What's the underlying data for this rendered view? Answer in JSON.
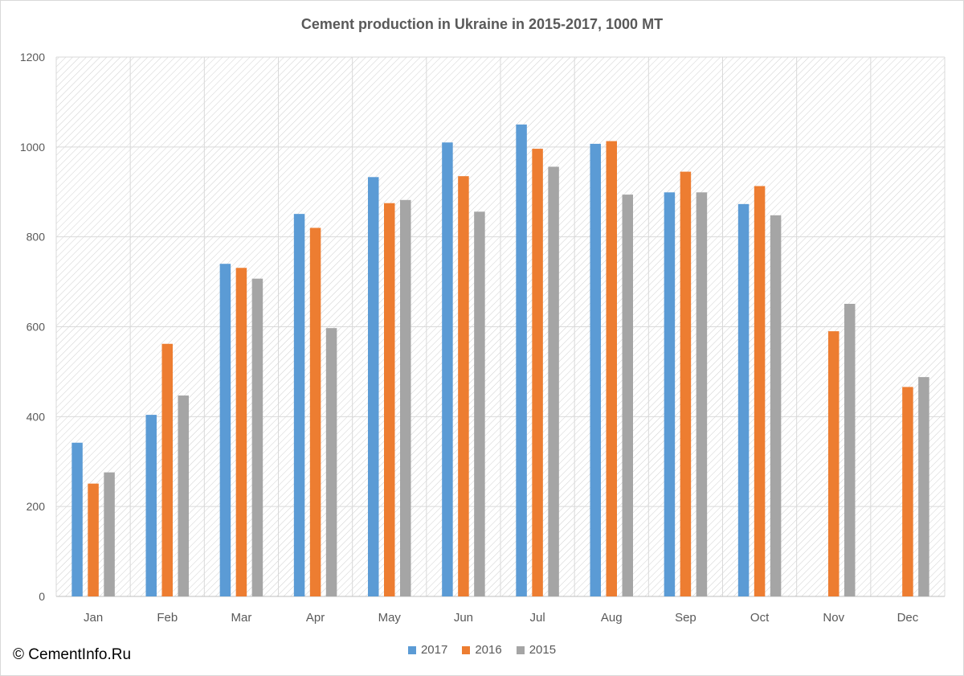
{
  "copyright": "© CementInfo.Ru",
  "chart_data": {
    "type": "bar",
    "title": "Cement production in Ukraine in 2015-2017, 1000 MT",
    "xlabel": "",
    "ylabel": "",
    "ylim": [
      0,
      1200
    ],
    "yticks": [
      0,
      200,
      400,
      600,
      800,
      1000,
      1200
    ],
    "grid": true,
    "legend_position": "bottom",
    "categories": [
      "Jan",
      "Feb",
      "Mar",
      "Apr",
      "May",
      "Jun",
      "Jul",
      "Aug",
      "Sep",
      "Oct",
      "Nov",
      "Dec"
    ],
    "series": [
      {
        "name": "2017",
        "color": "#5b9bd5",
        "values": [
          342,
          404,
          740,
          851,
          933,
          1010,
          1050,
          1007,
          899,
          873,
          null,
          null
        ]
      },
      {
        "name": "2016",
        "color": "#ed7d31",
        "values": [
          251,
          562,
          731,
          820,
          875,
          935,
          996,
          1013,
          945,
          913,
          590,
          466
        ]
      },
      {
        "name": "2015",
        "color": "#a5a5a5",
        "values": [
          276,
          447,
          707,
          597,
          882,
          856,
          956,
          894,
          899,
          848,
          651,
          488
        ]
      }
    ]
  }
}
